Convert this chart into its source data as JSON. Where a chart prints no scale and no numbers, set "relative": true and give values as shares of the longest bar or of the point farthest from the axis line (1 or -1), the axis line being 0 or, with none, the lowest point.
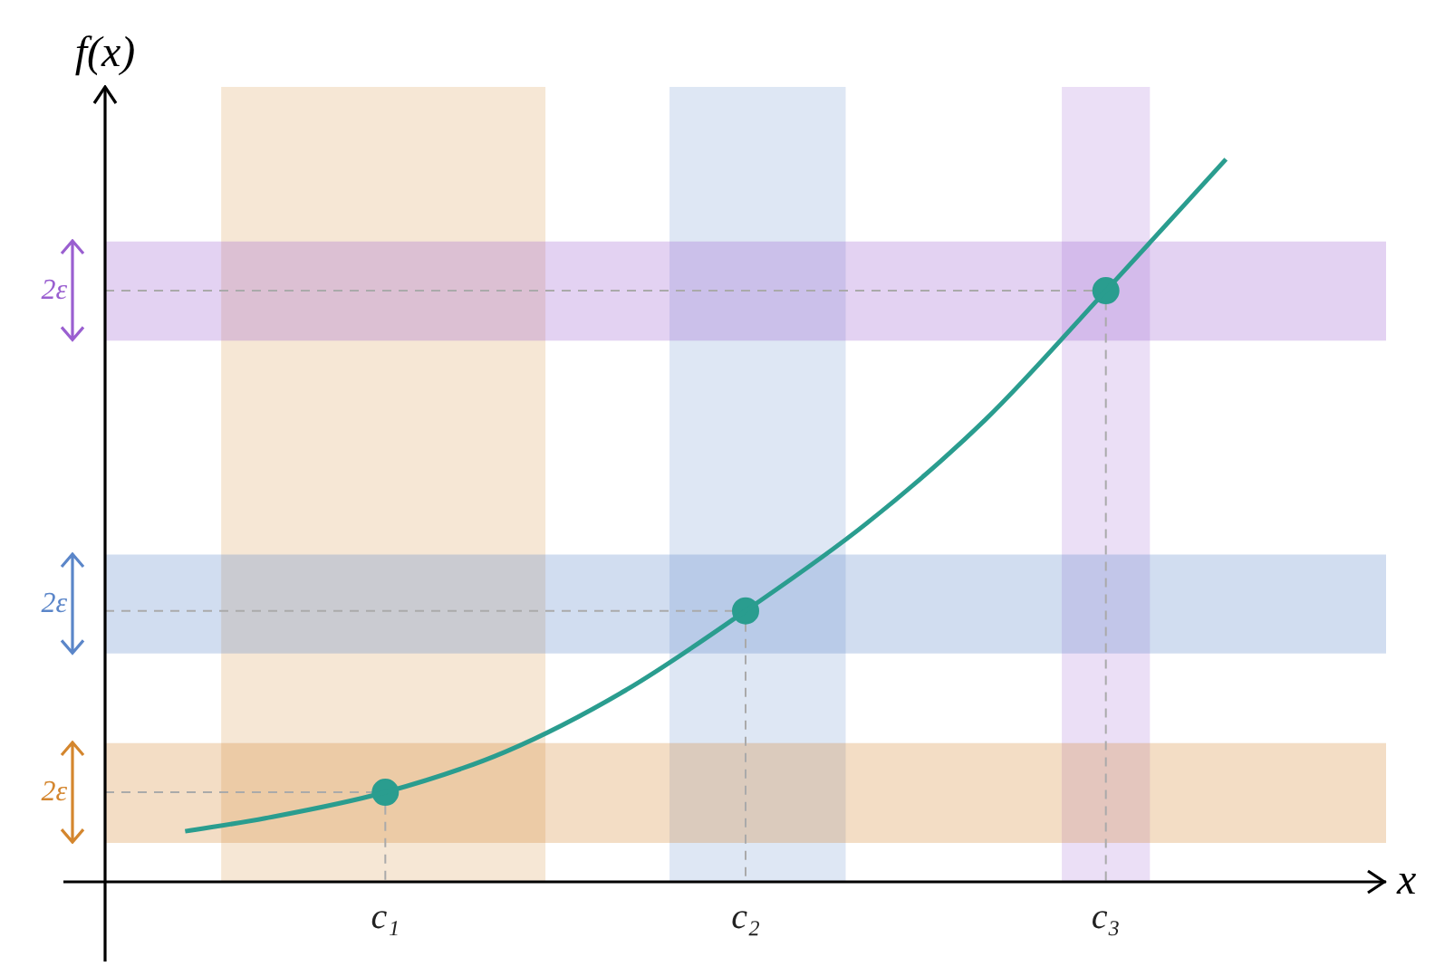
{
  "chart_data": {
    "type": "line",
    "relative": true,
    "xlabel": "x",
    "ylabel": "f(x)",
    "categories": [
      null,
      null,
      null,
      null,
      null,
      null,
      null,
      "c₁",
      null,
      null,
      null,
      null,
      null,
      null,
      null,
      null,
      "c₂",
      null,
      null,
      null,
      null,
      null,
      null,
      null,
      null,
      "c₃",
      null,
      null,
      null,
      null,
      null,
      null,
      null
    ],
    "series": [
      {
        "type": "line",
        "color": "#2a9d8f",
        "marker": "none",
        "values": [
          null,
          null,
          0.07,
          null,
          0.088,
          null,
          null,
          0.124,
          null,
          null,
          0.18,
          null,
          null,
          0.265,
          null,
          null,
          0.375,
          null,
          null,
          0.495,
          null,
          null,
          0.64,
          null,
          null,
          0.818,
          null,
          null,
          1,
          null,
          null,
          null,
          null
        ]
      },
      {
        "type": "scatter",
        "color": "#2a9d8f",
        "marker": "circle",
        "values": [
          null,
          null,
          null,
          null,
          null,
          null,
          null,
          0.124,
          null,
          null,
          null,
          null,
          null,
          null,
          null,
          null,
          0.375,
          null,
          null,
          null,
          null,
          null,
          null,
          null,
          null,
          0.818,
          null,
          null,
          null,
          null,
          null,
          null,
          null
        ]
      }
    ],
    "bands": [
      {
        "axis": "y",
        "from": 0.054,
        "to": 0.192,
        "color": "#d4862e",
        "label": "2ε"
      },
      {
        "axis": "y",
        "from": 0.316,
        "to": 0.453,
        "color": "#5b86c9",
        "label": "2ε"
      },
      {
        "axis": "y",
        "from": 0.749,
        "to": 0.886,
        "color": "#9a5fd0",
        "label": "2ε"
      }
    ]
  }
}
